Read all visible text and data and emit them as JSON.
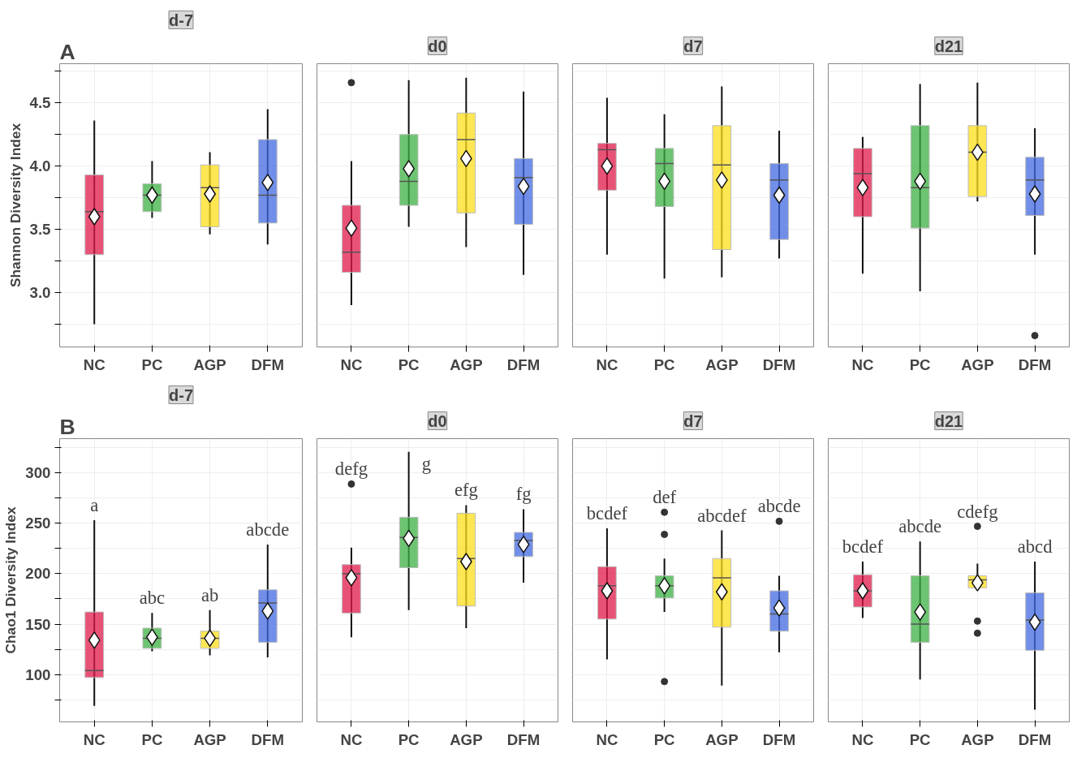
{
  "chart_data": [
    {
      "type": "box",
      "title": "d-7",
      "ylabel": "Shannon Diversity Index",
      "annotations": [
        "A"
      ],
      "categories": [
        "NC",
        "PC",
        "AGP",
        "DFM"
      ],
      "colors": [
        "#e2184a",
        "#3cb043",
        "#ffdf1b",
        "#4169e1"
      ],
      "ylim": [
        2.57,
        4.81
      ],
      "yticks": [
        {
          "value": 2.75,
          "label": null
        },
        {
          "value": 3.0,
          "label": "3.0"
        },
        {
          "value": 3.25,
          "label": null
        },
        3.5,
        {
          "value": 3.75,
          "label": null
        },
        {
          "value": 4.0,
          "label": "4.0"
        },
        {
          "value": 4.25,
          "label": null
        },
        4.5,
        {
          "value": 4.75,
          "label": null
        }
      ],
      "grid": true,
      "marker": "diamond",
      "boxes": [
        {
          "low": 2.75,
          "q1": 3.3,
          "median": 3.64,
          "q3": 3.93,
          "high": 4.36,
          "mean": 3.6
        },
        {
          "low": 3.59,
          "q1": 3.64,
          "median": 3.77,
          "q3": 3.86,
          "high": 4.04,
          "mean": 3.77
        },
        {
          "low": 3.46,
          "q1": 3.52,
          "median": 3.83,
          "q3": 4.01,
          "high": 4.11,
          "mean": 3.78
        },
        {
          "low": 3.38,
          "q1": 3.55,
          "median": 3.77,
          "q3": 4.21,
          "high": 4.45,
          "mean": 3.87
        }
      ]
    },
    {
      "type": "box",
      "title": "d0",
      "categories": [
        "NC",
        "PC",
        "AGP",
        "DFM"
      ],
      "colors": [
        "#e2184a",
        "#3cb043",
        "#ffdf1b",
        "#4169e1"
      ],
      "ylim": [
        2.57,
        4.81
      ],
      "yticks": [
        {
          "value": 2.75,
          "label": null
        },
        3.0,
        {
          "value": 3.25,
          "label": null
        },
        3.5,
        {
          "value": 3.75,
          "label": null
        },
        4.0,
        {
          "value": 4.25,
          "label": null
        },
        4.5,
        {
          "value": 4.75,
          "label": null
        }
      ],
      "grid": true,
      "marker": "diamond",
      "tick_labels": "x",
      "boxes": [
        {
          "low": 2.9,
          "q1": 3.16,
          "median": 3.32,
          "q3": 3.69,
          "high": 4.04,
          "mean": 3.51,
          "outliers": [
            4.66
          ]
        },
        {
          "low": 3.52,
          "q1": 3.69,
          "median": 3.88,
          "q3": 4.25,
          "high": 4.68,
          "mean": 3.98
        },
        {
          "low": 3.36,
          "q1": 3.63,
          "median": 4.21,
          "q3": 4.42,
          "high": 4.7,
          "mean": 4.06
        },
        {
          "low": 3.14,
          "q1": 3.54,
          "median": 3.91,
          "q3": 4.06,
          "high": 4.59,
          "mean": 3.84
        }
      ]
    },
    {
      "type": "box",
      "title": "d7",
      "categories": [
        "NC",
        "PC",
        "AGP",
        "DFM"
      ],
      "colors": [
        "#e2184a",
        "#3cb043",
        "#ffdf1b",
        "#4169e1"
      ],
      "ylim": [
        2.57,
        4.81
      ],
      "yticks": [
        {
          "value": 2.75,
          "label": null
        },
        3.0,
        {
          "value": 3.25,
          "label": null
        },
        3.5,
        {
          "value": 3.75,
          "label": null
        },
        4.0,
        {
          "value": 4.25,
          "label": null
        },
        4.5,
        {
          "value": 4.75,
          "label": null
        }
      ],
      "grid": true,
      "marker": "diamond",
      "tick_labels": "x",
      "boxes": [
        {
          "low": 3.3,
          "q1": 3.81,
          "median": 4.13,
          "q3": 4.18,
          "high": 4.54,
          "mean": 4.0
        },
        {
          "low": 3.11,
          "q1": 3.68,
          "median": 4.02,
          "q3": 4.14,
          "high": 4.41,
          "mean": 3.88
        },
        {
          "low": 3.12,
          "q1": 3.34,
          "median": 4.01,
          "q3": 4.32,
          "high": 4.63,
          "mean": 3.89
        },
        {
          "low": 3.27,
          "q1": 3.42,
          "median": 3.89,
          "q3": 4.02,
          "high": 4.28,
          "mean": 3.77
        }
      ]
    },
    {
      "type": "box",
      "title": "d21",
      "categories": [
        "NC",
        "PC",
        "AGP",
        "DFM"
      ],
      "colors": [
        "#e2184a",
        "#3cb043",
        "#ffdf1b",
        "#4169e1"
      ],
      "ylim": [
        2.57,
        4.81
      ],
      "yticks": [
        {
          "value": 2.75,
          "label": null
        },
        3.0,
        {
          "value": 3.25,
          "label": null
        },
        3.5,
        {
          "value": 3.75,
          "label": null
        },
        4.0,
        {
          "value": 4.25,
          "label": null
        },
        4.5,
        {
          "value": 4.75,
          "label": null
        }
      ],
      "grid": true,
      "marker": "diamond",
      "tick_labels": "x",
      "boxes": [
        {
          "low": 3.15,
          "q1": 3.6,
          "median": 3.94,
          "q3": 4.14,
          "high": 4.23,
          "mean": 3.83
        },
        {
          "low": 3.01,
          "q1": 3.51,
          "median": 3.83,
          "q3": 4.32,
          "high": 4.65,
          "mean": 3.88
        },
        {
          "low": 3.72,
          "q1": 3.76,
          "median": 4.11,
          "q3": 4.32,
          "high": 4.66,
          "mean": 4.11
        },
        {
          "low": 3.3,
          "q1": 3.61,
          "median": 3.89,
          "q3": 4.07,
          "high": 4.3,
          "mean": 3.78,
          "outliers": [
            2.66
          ]
        }
      ]
    },
    {
      "type": "box",
      "title": "d-7",
      "ylabel": "Chao1 Diversity Index",
      "categories": [
        "NC",
        "PC",
        "AGP",
        "DFM"
      ],
      "colors": [
        "#e2184a",
        "#3cb043",
        "#ffdf1b",
        "#4169e1"
      ],
      "ylim": [
        53,
        334
      ],
      "yticks": [
        {
          "value": 75,
          "label": null
        },
        100,
        {
          "value": 125,
          "label": null
        },
        150,
        {
          "value": 175,
          "label": null
        },
        200,
        {
          "value": 225,
          "label": null
        },
        250,
        {
          "value": 275,
          "label": null
        },
        300,
        {
          "value": 325,
          "label": null
        }
      ],
      "grid": true,
      "marker": "diamond",
      "annotations": [
        "B",
        "a",
        "abc",
        "ab",
        "abcde"
      ],
      "boxes": [
        {
          "low": 69,
          "q1": 97,
          "median": 104,
          "q3": 162,
          "high": 253,
          "mean": 134
        },
        {
          "low": 123,
          "q1": 126,
          "median": 136,
          "q3": 146,
          "high": 161,
          "mean": 137
        },
        {
          "low": 119,
          "q1": 126,
          "median": 136,
          "q3": 143,
          "high": 164,
          "mean": 136
        },
        {
          "low": 117,
          "q1": 132,
          "median": 171,
          "q3": 184,
          "high": 229,
          "mean": 163
        }
      ]
    },
    {
      "type": "box",
      "title": "d0",
      "categories": [
        "NC",
        "PC",
        "AGP",
        "DFM"
      ],
      "colors": [
        "#e2184a",
        "#3cb043",
        "#ffdf1b",
        "#4169e1"
      ],
      "ylim": [
        53,
        334
      ],
      "yticks": [
        {
          "value": 75,
          "label": null
        },
        100,
        {
          "value": 125,
          "label": null
        },
        150,
        {
          "value": 175,
          "label": null
        },
        200,
        {
          "value": 225,
          "label": null
        },
        250,
        {
          "value": 275,
          "label": null
        },
        300,
        {
          "value": 325,
          "label": null
        }
      ],
      "grid": true,
      "marker": "diamond",
      "tick_labels": "x",
      "annotations": [
        "defg",
        "g",
        "efg",
        "fg"
      ],
      "boxes": [
        {
          "low": 137,
          "q1": 161,
          "median": 200,
          "q3": 209,
          "high": 226,
          "mean": 196,
          "outliers": [
            289
          ]
        },
        {
          "low": 164,
          "q1": 206,
          "median": 236,
          "q3": 256,
          "high": 321,
          "mean": 235
        },
        {
          "low": 146,
          "q1": 168,
          "median": 215,
          "q3": 260,
          "high": 268,
          "mean": 212
        },
        {
          "low": 191,
          "q1": 217,
          "median": 233,
          "q3": 241,
          "high": 264,
          "mean": 229
        }
      ]
    },
    {
      "type": "box",
      "title": "d7",
      "categories": [
        "NC",
        "PC",
        "AGP",
        "DFM"
      ],
      "colors": [
        "#e2184a",
        "#3cb043",
        "#ffdf1b",
        "#4169e1"
      ],
      "ylim": [
        53,
        334
      ],
      "yticks": [
        {
          "value": 75,
          "label": null
        },
        100,
        {
          "value": 125,
          "label": null
        },
        150,
        {
          "value": 175,
          "label": null
        },
        200,
        {
          "value": 225,
          "label": null
        },
        250,
        {
          "value": 275,
          "label": null
        },
        300,
        {
          "value": 325,
          "label": null
        }
      ],
      "grid": true,
      "marker": "diamond",
      "tick_labels": "x",
      "annotations": [
        "bcdef",
        "def",
        "abcdef",
        "abcde"
      ],
      "boxes": [
        {
          "low": 115,
          "q1": 155,
          "median": 188,
          "q3": 207,
          "high": 245,
          "mean": 183
        },
        {
          "low": 162,
          "q1": 176,
          "median": 188,
          "q3": 198,
          "high": 215,
          "mean": 188,
          "outliers": [
            261,
            239,
            93
          ]
        },
        {
          "low": 89,
          "q1": 147,
          "median": 196,
          "q3": 215,
          "high": 243,
          "mean": 182
        },
        {
          "low": 122,
          "q1": 143,
          "median": 160,
          "q3": 183,
          "high": 198,
          "mean": 166,
          "outliers": [
            252
          ]
        }
      ]
    },
    {
      "type": "box",
      "title": "d21",
      "categories": [
        "NC",
        "PC",
        "AGP",
        "DFM"
      ],
      "colors": [
        "#e2184a",
        "#3cb043",
        "#ffdf1b",
        "#4169e1"
      ],
      "ylim": [
        53,
        334
      ],
      "yticks": [
        {
          "value": 75,
          "label": null
        },
        100,
        {
          "value": 125,
          "label": null
        },
        150,
        {
          "value": 175,
          "label": null
        },
        200,
        {
          "value": 225,
          "label": null
        },
        250,
        {
          "value": 275,
          "label": null
        },
        300,
        {
          "value": 325,
          "label": null
        }
      ],
      "grid": true,
      "marker": "diamond",
      "tick_labels": "x",
      "annotations": [
        "bcdef",
        "abcde",
        "cdefg",
        "abcd"
      ],
      "boxes": [
        {
          "low": 156,
          "q1": 167,
          "median": 183,
          "q3": 199,
          "high": 212,
          "mean": 183
        },
        {
          "low": 95,
          "q1": 132,
          "median": 150,
          "q3": 198,
          "high": 232,
          "mean": 162
        },
        {
          "low": 185,
          "q1": 186,
          "median": 194,
          "q3": 198,
          "high": 210,
          "mean": 191,
          "outliers": [
            247,
            153,
            141
          ]
        },
        {
          "low": 65,
          "q1": 124,
          "median": 154,
          "q3": 181,
          "high": 212,
          "mean": 152
        }
      ]
    }
  ]
}
